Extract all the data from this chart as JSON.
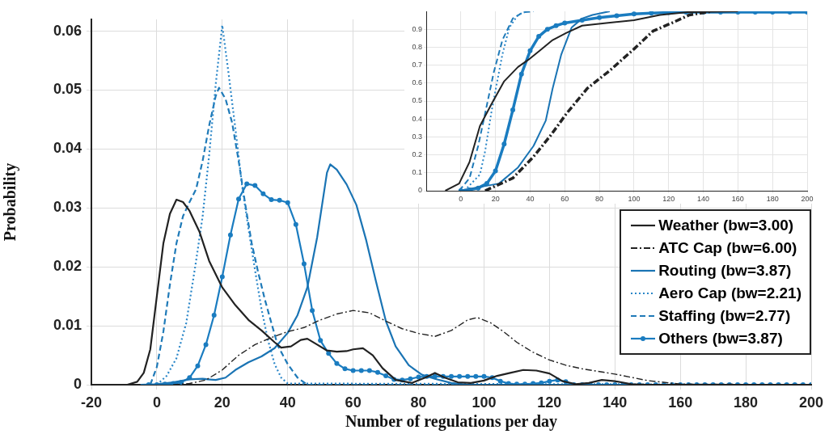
{
  "chart_data": [
    {
      "type": "line",
      "xlabel": "Number of regulations per day",
      "ylabel": "Probability",
      "xlim": [
        -20,
        200
      ],
      "ylim": [
        0,
        0.062
      ],
      "xticks": [
        -20,
        0,
        20,
        40,
        60,
        80,
        100,
        120,
        140,
        160,
        180,
        200
      ],
      "yticks": [
        0,
        0.01,
        0.02,
        0.03,
        0.04,
        0.05,
        0.06
      ],
      "grid": true,
      "legend": "bottom right",
      "series": [
        {
          "name": "Weather (bw=3.00)",
          "color": "#222222",
          "line_style": "solid",
          "x": [
            -9,
            -6,
            -4,
            -2,
            0,
            2,
            4,
            6,
            8,
            10,
            13,
            16,
            20,
            24,
            28,
            32,
            36,
            38,
            41,
            44,
            46,
            49,
            52,
            55,
            58,
            60,
            63,
            66,
            69,
            73,
            78,
            82,
            85,
            88,
            92,
            96,
            100,
            104,
            108,
            112,
            116,
            120,
            124,
            128,
            132,
            136,
            140,
            145,
            150,
            200
          ],
          "values": [
            0,
            0.0005,
            0.002,
            0.006,
            0.015,
            0.024,
            0.029,
            0.0314,
            0.031,
            0.0295,
            0.026,
            0.021,
            0.0165,
            0.0135,
            0.011,
            0.0092,
            0.0072,
            0.0063,
            0.0065,
            0.0076,
            0.0078,
            0.0068,
            0.0058,
            0.0056,
            0.0057,
            0.006,
            0.0062,
            0.005,
            0.0028,
            0.0008,
            0.0003,
            0.0012,
            0.002,
            0.0012,
            0.0004,
            0.0003,
            0.0007,
            0.0015,
            0.002,
            0.0025,
            0.0024,
            0.0019,
            0.0006,
            0.0001,
            0.0003,
            0.0008,
            0.0006,
            0.0001,
            0,
            0
          ]
        },
        {
          "name": "ATC Cap (bw=6.00)",
          "color": "#222222",
          "line_style": "dashdot",
          "x": [
            5,
            10,
            15,
            20,
            25,
            30,
            35,
            40,
            45,
            50,
            55,
            60,
            65,
            70,
            75,
            80,
            85,
            90,
            95,
            98,
            102,
            106,
            110,
            115,
            120,
            125,
            130,
            140,
            150,
            160,
            200
          ],
          "values": [
            0,
            0.0002,
            0.0008,
            0.0025,
            0.005,
            0.0068,
            0.008,
            0.009,
            0.0097,
            0.011,
            0.012,
            0.0126,
            0.0122,
            0.0108,
            0.0095,
            0.0087,
            0.0082,
            0.0092,
            0.011,
            0.0114,
            0.0105,
            0.009,
            0.0072,
            0.0055,
            0.0042,
            0.0033,
            0.0027,
            0.0018,
            0.0007,
            0.0001,
            0
          ]
        },
        {
          "name": "Routing (bw=3.87)",
          "color": "#1a74b4",
          "line_style": "solid",
          "x": [
            -5,
            0,
            5,
            10,
            14,
            18,
            21,
            24,
            28,
            32,
            36,
            40,
            43,
            46,
            49,
            52,
            53,
            55,
            58,
            61,
            64,
            67,
            70,
            73,
            77,
            81,
            85,
            90,
            95,
            200
          ],
          "values": [
            0,
            0.0001,
            0.0004,
            0.0009,
            0.001,
            0.0008,
            0.0012,
            0.0025,
            0.0038,
            0.0048,
            0.0062,
            0.0088,
            0.0118,
            0.0165,
            0.025,
            0.036,
            0.0374,
            0.0365,
            0.034,
            0.0305,
            0.0245,
            0.0175,
            0.0108,
            0.0065,
            0.0033,
            0.0017,
            0.001,
            0.0003,
            0,
            0
          ]
        },
        {
          "name": "Aero Cap (bw=2.21)",
          "color": "#2a86c8",
          "line_style": "dotted",
          "x": [
            0,
            3,
            6,
            9,
            12,
            14,
            16,
            18,
            20,
            22,
            24,
            26,
            28,
            30,
            32,
            34,
            36,
            38,
            40,
            200
          ],
          "values": [
            0,
            0.0015,
            0.0045,
            0.0105,
            0.021,
            0.0286,
            0.039,
            0.051,
            0.061,
            0.0525,
            0.0435,
            0.034,
            0.0265,
            0.0195,
            0.0128,
            0.0075,
            0.0035,
            0.0012,
            0.0002,
            0
          ]
        },
        {
          "name": "Staffing (bw=2.77)",
          "color": "#1f7ab8",
          "line_style": "dashed",
          "x": [
            -2,
            0,
            2,
            4,
            6,
            8,
            10,
            12,
            14,
            16,
            18,
            19,
            21,
            23,
            25,
            27,
            29,
            31,
            33,
            35,
            37,
            40,
            43,
            46,
            200
          ],
          "values": [
            0,
            0.003,
            0.009,
            0.017,
            0.024,
            0.0286,
            0.031,
            0.0332,
            0.038,
            0.044,
            0.049,
            0.0504,
            0.0485,
            0.0445,
            0.038,
            0.0307,
            0.024,
            0.019,
            0.0145,
            0.0105,
            0.0066,
            0.0035,
            0.0012,
            0,
            0
          ]
        },
        {
          "name": "Others (bw=3.87)",
          "color": "#1a7cc0",
          "line_style": "solid",
          "marker": "circle",
          "x": [
            -2.5,
            0,
            2.5,
            5,
            7.5,
            10,
            12.5,
            15,
            17.5,
            20,
            22.5,
            25,
            27.5,
            30,
            32.5,
            35,
            37.5,
            40,
            42.5,
            45,
            47.5,
            50,
            52.5,
            55,
            57.5,
            60,
            62.5,
            65,
            67.5,
            70,
            72.5,
            75,
            77.5,
            80,
            82.5,
            85,
            87.5,
            90,
            92.5,
            95,
            97.5,
            100,
            102.5,
            105,
            107.5,
            110,
            112.5,
            115,
            117.5,
            120,
            122.5,
            125,
            127.5,
            130,
            132.5,
            135,
            137.5,
            140,
            142.5,
            145,
            147.5,
            150,
            152.5,
            155,
            157.5,
            160,
            162.5,
            165,
            167.5,
            170,
            172.5,
            175,
            177.5,
            180,
            182.5,
            185,
            187.5,
            190,
            192.5,
            195,
            197.5,
            200
          ],
          "values": [
            0,
            0,
            0.0001,
            0.0002,
            0.0004,
            0.0012,
            0.0032,
            0.0068,
            0.0118,
            0.0183,
            0.0254,
            0.0315,
            0.0341,
            0.0338,
            0.0324,
            0.0314,
            0.0313,
            0.0309,
            0.0272,
            0.0205,
            0.0126,
            0.0075,
            0.0053,
            0.0036,
            0.0027,
            0.0024,
            0.0024,
            0.0024,
            0.0021,
            0.0015,
            0.0009,
            0.0008,
            0.001,
            0.0013,
            0.0014,
            0.0014,
            0.0014,
            0.0014,
            0.0014,
            0.0014,
            0.0014,
            0.0014,
            0.0012,
            0.0006,
            0.0002,
            0.0001,
            0.0001,
            0.0002,
            0.0003,
            0.0006,
            0.0008,
            0.0005,
            0,
            0,
            0,
            0,
            0,
            0,
            0,
            0,
            0,
            0,
            0,
            0,
            0,
            0,
            0,
            0,
            0,
            0,
            0,
            0,
            0,
            0,
            0,
            0,
            0,
            0,
            0,
            0,
            0,
            0
          ]
        }
      ]
    },
    {
      "type": "line",
      "xlim": [
        -20,
        200
      ],
      "ylim": [
        0,
        1
      ],
      "xticks": [
        0,
        20,
        40,
        60,
        80,
        100,
        120,
        140,
        160,
        180,
        200
      ],
      "yticks": [
        0,
        0.1,
        0.2,
        0.3,
        0.4,
        0.5,
        0.6,
        0.7,
        0.8,
        0.9
      ],
      "grid": true,
      "series": [
        {
          "color": "#222222",
          "line_style": "solid",
          "x": [
            -9,
            -1,
            5,
            11,
            17.5,
            25,
            33,
            39,
            45.5,
            53,
            61,
            70,
            84,
            100,
            115,
            131,
            160
          ],
          "values": [
            0,
            0.04,
            0.16,
            0.36,
            0.48,
            0.61,
            0.69,
            0.73,
            0.78,
            0.84,
            0.88,
            0.92,
            0.935,
            0.95,
            0.98,
            0.995,
            1
          ]
        },
        {
          "color": "#222222",
          "line_style": "dashdot",
          "x": [
            14,
            30,
            42,
            52,
            61,
            73,
            86,
            100,
            111,
            123,
            132,
            145
          ],
          "values": [
            0,
            0.07,
            0.19,
            0.31,
            0.43,
            0.57,
            0.67,
            0.79,
            0.89,
            0.94,
            0.98,
            1
          ]
        },
        {
          "color": "#1a74b4",
          "line_style": "solid",
          "x": [
            -1,
            22,
            33,
            42,
            49,
            53,
            58,
            64,
            70,
            76,
            86
          ],
          "values": [
            0,
            0.04,
            0.13,
            0.25,
            0.39,
            0.57,
            0.76,
            0.91,
            0.96,
            0.98,
            1
          ]
        },
        {
          "color": "#2a86c8",
          "line_style": "dotted",
          "x": [
            2,
            11,
            14,
            17.5,
            21,
            24,
            28,
            33,
            38
          ],
          "values": [
            0,
            0.09,
            0.22,
            0.43,
            0.61,
            0.76,
            0.91,
            0.98,
            1
          ]
        },
        {
          "color": "#1f7ab8",
          "line_style": "dashed",
          "x": [
            -1,
            5,
            10,
            14,
            19,
            24,
            30,
            36,
            42
          ],
          "values": [
            0,
            0.07,
            0.25,
            0.43,
            0.66,
            0.84,
            0.96,
            0.995,
            1
          ]
        },
        {
          "color": "#1a7cc0",
          "line_style": "solid",
          "marker": "circle",
          "x": [
            0,
            5,
            10,
            15,
            20,
            25,
            30,
            35,
            40,
            45,
            50,
            55,
            60,
            70,
            80,
            90,
            100,
            110,
            120,
            130,
            140,
            150,
            160,
            170,
            180,
            190,
            200
          ],
          "values": [
            0,
            0.005,
            0.015,
            0.04,
            0.11,
            0.26,
            0.45,
            0.65,
            0.78,
            0.86,
            0.9,
            0.92,
            0.935,
            0.95,
            0.965,
            0.975,
            0.985,
            0.99,
            0.993,
            0.995,
            0.995,
            0.995,
            0.995,
            0.995,
            0.995,
            0.995,
            0.995
          ]
        }
      ]
    }
  ]
}
